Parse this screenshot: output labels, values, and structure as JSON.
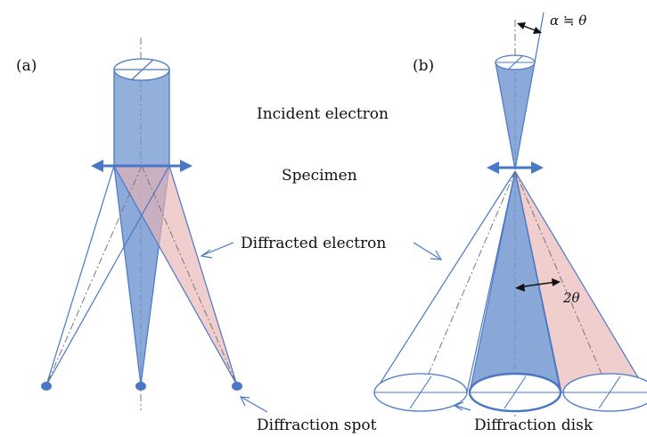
{
  "panel_a_label": "(a)",
  "panel_b_label": "(b)",
  "incident_label": "Incident electron",
  "specimen_label": "Specimen",
  "diffracted_label": "Diffracted electron",
  "spot_label": "Diffraction spot",
  "disk_label": "Diffraction disk",
  "alpha_label": "α ≒ θ",
  "two_theta_label": "2θ",
  "colors": {
    "outline": "#4a78c4",
    "blue_fill": "#6f95cf",
    "pink_fill": "#e8b4b4",
    "text": "#111111"
  }
}
